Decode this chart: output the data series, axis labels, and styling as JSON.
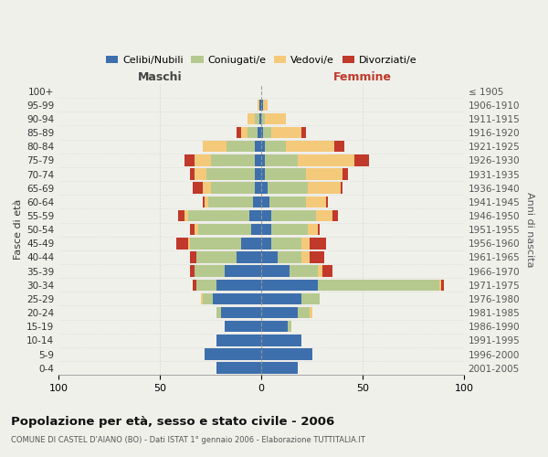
{
  "age_groups": [
    "0-4",
    "5-9",
    "10-14",
    "15-19",
    "20-24",
    "25-29",
    "30-34",
    "35-39",
    "40-44",
    "45-49",
    "50-54",
    "55-59",
    "60-64",
    "65-69",
    "70-74",
    "75-79",
    "80-84",
    "85-89",
    "90-94",
    "95-99",
    "100+"
  ],
  "birth_years": [
    "2001-2005",
    "1996-2000",
    "1991-1995",
    "1986-1990",
    "1981-1985",
    "1976-1980",
    "1971-1975",
    "1966-1970",
    "1961-1965",
    "1956-1960",
    "1951-1955",
    "1946-1950",
    "1941-1945",
    "1936-1940",
    "1931-1935",
    "1926-1930",
    "1921-1925",
    "1916-1920",
    "1911-1915",
    "1906-1910",
    "≤ 1905"
  ],
  "males_celibi": [
    22,
    28,
    22,
    18,
    20,
    24,
    22,
    18,
    12,
    10,
    5,
    6,
    4,
    3,
    3,
    3,
    3,
    2,
    1,
    1,
    0
  ],
  "males_coniugati": [
    0,
    0,
    0,
    0,
    2,
    5,
    10,
    15,
    20,
    25,
    26,
    30,
    22,
    22,
    24,
    22,
    14,
    5,
    2,
    0,
    0
  ],
  "males_vedovi": [
    0,
    0,
    0,
    0,
    0,
    1,
    0,
    0,
    0,
    1,
    2,
    2,
    2,
    4,
    6,
    8,
    12,
    3,
    4,
    1,
    0
  ],
  "males_divorziati": [
    0,
    0,
    0,
    0,
    0,
    0,
    2,
    2,
    3,
    6,
    2,
    3,
    1,
    5,
    2,
    5,
    0,
    2,
    0,
    0,
    0
  ],
  "females_nubili": [
    18,
    25,
    20,
    13,
    18,
    20,
    28,
    14,
    8,
    5,
    5,
    5,
    4,
    3,
    2,
    2,
    2,
    1,
    0,
    1,
    0
  ],
  "females_coniugate": [
    0,
    0,
    0,
    2,
    6,
    9,
    60,
    14,
    12,
    15,
    18,
    22,
    18,
    20,
    20,
    16,
    10,
    4,
    2,
    0,
    0
  ],
  "females_vedove": [
    0,
    0,
    0,
    0,
    1,
    0,
    1,
    2,
    4,
    4,
    5,
    8,
    10,
    16,
    18,
    28,
    24,
    15,
    10,
    2,
    0
  ],
  "females_divorziate": [
    0,
    0,
    0,
    0,
    0,
    0,
    1,
    5,
    7,
    8,
    1,
    3,
    1,
    1,
    3,
    7,
    5,
    2,
    0,
    0,
    0
  ],
  "color_celibi": "#3d6fad",
  "color_coniugati": "#b5c98e",
  "color_vedovi": "#f5c97a",
  "color_divorziati": "#c0392b",
  "xlim": 100,
  "bg_color": "#f0f0eb",
  "grid_color": "#cccccc",
  "title": "Popolazione per età, sesso e stato civile - 2006",
  "subtitle": "COMUNE DI CASTEL D'AIANO (BO) - Dati ISTAT 1° gennaio 2006 - Elaborazione TUTTITALIA.IT",
  "label_maschi": "Maschi",
  "label_femmine": "Femmine",
  "ylabel_left": "Fasce di età",
  "ylabel_right": "Anni di nascita",
  "legend": [
    "Celibi/Nubili",
    "Coniugati/e",
    "Vedovi/e",
    "Divorziati/e"
  ],
  "xticks": [
    -100,
    -50,
    0,
    50,
    100
  ],
  "xticklabels": [
    "100",
    "50",
    "0",
    "50",
    "100"
  ]
}
